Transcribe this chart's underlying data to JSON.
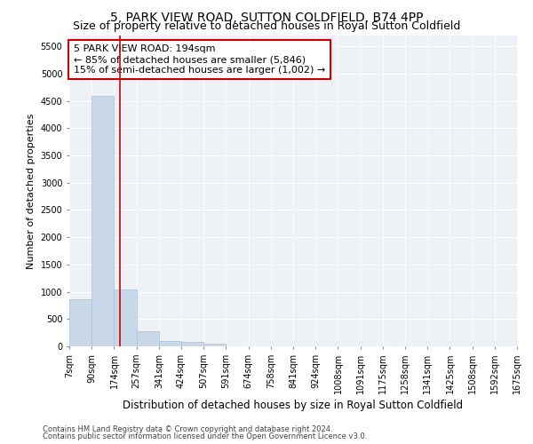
{
  "title1": "5, PARK VIEW ROAD, SUTTON COLDFIELD, B74 4PP",
  "title2": "Size of property relative to detached houses in Royal Sutton Coldfield",
  "xlabel": "Distribution of detached houses by size in Royal Sutton Coldfield",
  "ylabel": "Number of detached properties",
  "footnote1": "Contains HM Land Registry data © Crown copyright and database right 2024.",
  "footnote2": "Contains public sector information licensed under the Open Government Licence v3.0.",
  "annotation_line1": "5 PARK VIEW ROAD: 194sqm",
  "annotation_line2": "← 85% of detached houses are smaller (5,846)",
  "annotation_line3": "15% of semi-detached houses are larger (1,002) →",
  "bar_color": "#c8d8e8",
  "bar_edge_color": "#a8c0d4",
  "red_line_color": "#cc0000",
  "annotation_box_edge": "#cc0000",
  "bin_edges": [
    7,
    90,
    174,
    257,
    341,
    424,
    507,
    591,
    674,
    758,
    841,
    924,
    1008,
    1091,
    1175,
    1258,
    1341,
    1425,
    1508,
    1592,
    1675
  ],
  "bar_heights": [
    870,
    4600,
    1050,
    270,
    90,
    80,
    55,
    0,
    0,
    0,
    0,
    0,
    0,
    0,
    0,
    0,
    0,
    0,
    0,
    0
  ],
  "property_size": 194,
  "ylim": [
    0,
    5700
  ],
  "yticks": [
    0,
    500,
    1000,
    1500,
    2000,
    2500,
    3000,
    3500,
    4000,
    4500,
    5000,
    5500
  ],
  "background_color": "#eef2f6",
  "grid_color": "#ffffff",
  "title1_fontsize": 10,
  "title2_fontsize": 9,
  "annotation_fontsize": 8,
  "tick_fontsize": 7,
  "ylabel_fontsize": 8,
  "xlabel_fontsize": 8.5
}
